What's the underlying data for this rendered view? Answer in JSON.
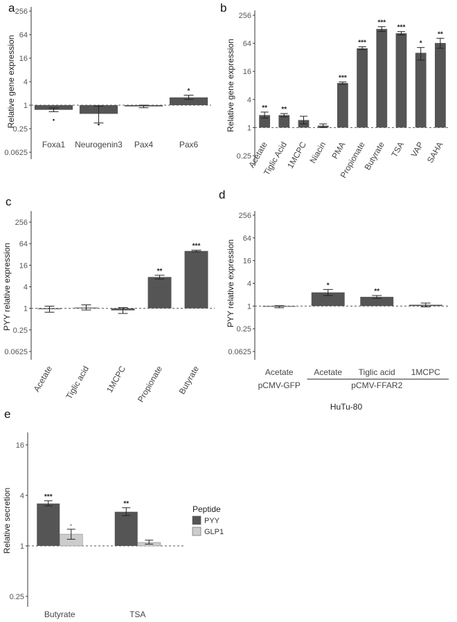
{
  "chart_data": [
    {
      "panel": "a",
      "type": "bar",
      "ylabel": "Relative gene expression",
      "yscale": "log2",
      "yticks": [
        "256",
        "64",
        "16",
        "4",
        "1",
        "0.25",
        "0.0625"
      ],
      "ylim": [
        0.05,
        350
      ],
      "reference_line": 1,
      "categories": [
        "Foxa1",
        "Neurogenin3",
        "Pax4",
        "Pax6"
      ],
      "values": [
        0.76,
        0.6,
        0.93,
        1.58
      ],
      "err_low": [
        0.68,
        0.35,
        0.86,
        1.4
      ],
      "err_high": [
        0.85,
        0.95,
        1.0,
        1.8
      ],
      "significance": [
        "",
        "",
        "",
        "*"
      ],
      "dots": [
        0.42,
        0.32,
        null,
        null
      ],
      "grid": false
    },
    {
      "panel": "b",
      "type": "bar",
      "ylabel": "Relative gene expression",
      "yscale": "log2",
      "yticks": [
        "256",
        "64",
        "16",
        "4",
        "1",
        "0.25"
      ],
      "ylim": [
        0.22,
        340
      ],
      "reference_line": 1,
      "categories": [
        "Acetate",
        "Tiglic Acid",
        "1MCPC",
        "Niacin",
        "PMA",
        "Propionate",
        "Butyrate",
        "TSA",
        "VAP",
        "SAHA"
      ],
      "values": [
        1.85,
        1.85,
        1.45,
        1.1,
        9.0,
        50,
        130,
        105,
        40,
        65
      ],
      "err_low": [
        1.6,
        1.7,
        1.2,
        1.0,
        8.5,
        47,
        115,
        97,
        28,
        50
      ],
      "err_high": [
        2.15,
        2.0,
        1.75,
        1.2,
        9.5,
        54,
        145,
        114,
        52,
        82
      ],
      "significance": [
        "**",
        "**",
        "",
        "",
        "***",
        "***",
        "***",
        "***",
        "*",
        "**"
      ],
      "grid": false
    },
    {
      "panel": "c",
      "type": "bar",
      "ylabel": "PYY relative expression",
      "yscale": "log2",
      "yticks": [
        "256",
        "64",
        "16",
        "4",
        "1",
        "0.25",
        "0.0625"
      ],
      "ylim": [
        0.05,
        350
      ],
      "reference_line": 1,
      "categories": [
        "Acetate",
        "Tiglic acid",
        "1MCPC",
        "Propionate",
        "Butyrate"
      ],
      "values": [
        0.95,
        1.05,
        0.88,
        7.5,
        40
      ],
      "err_low": [
        0.78,
        0.9,
        0.72,
        6.6,
        38
      ],
      "err_high": [
        1.15,
        1.25,
        1.05,
        8.4,
        42
      ],
      "significance": [
        "",
        "",
        "",
        "**",
        "***"
      ],
      "grid": false
    },
    {
      "panel": "d",
      "type": "bar",
      "ylabel": "PYY relative expression",
      "yscale": "log2",
      "yticks": [
        "256",
        "64",
        "16",
        "4",
        "1",
        "0.25",
        "0.0625"
      ],
      "ylim": [
        0.05,
        350
      ],
      "reference_line": 1,
      "categories": [
        "Acetate",
        "Acetate",
        "Tiglic acid",
        "1MCPC"
      ],
      "groups": [
        {
          "label": "pCMV-GFP",
          "categories": [
            0
          ]
        },
        {
          "label": "pCMV-FFAR2",
          "categories": [
            1,
            2,
            3
          ]
        }
      ],
      "caption": "HuTu-80",
      "values": [
        0.96,
        2.3,
        1.75,
        1.08
      ],
      "err_low": [
        0.9,
        1.9,
        1.6,
        0.95
      ],
      "err_high": [
        1.02,
        2.75,
        1.9,
        1.2
      ],
      "significance": [
        "",
        "*",
        "**",
        ""
      ],
      "grid": false
    },
    {
      "panel": "e",
      "type": "bar",
      "ylabel": "Relative secretion",
      "yscale": "log2",
      "yticks": [
        "16",
        "4",
        "1",
        "0.25"
      ],
      "ylim": [
        0.2,
        26
      ],
      "reference_line": 1,
      "categories": [
        "Butyrate",
        "TSA"
      ],
      "series": [
        {
          "name": "PYY",
          "color": "#555555",
          "values": [
            3.2,
            2.55
          ],
          "err_low": [
            3.0,
            2.3
          ],
          "err_high": [
            3.45,
            2.85
          ],
          "significance": [
            "***",
            "**"
          ]
        },
        {
          "name": "GLP1",
          "color": "#cccccc",
          "values": [
            1.38,
            1.1
          ],
          "err_low": [
            1.2,
            1.05
          ],
          "err_high": [
            1.58,
            1.17
          ],
          "significance": [
            "·",
            ""
          ]
        }
      ],
      "legend_title": "Peptide",
      "legend_position": "right",
      "grid": false
    }
  ]
}
